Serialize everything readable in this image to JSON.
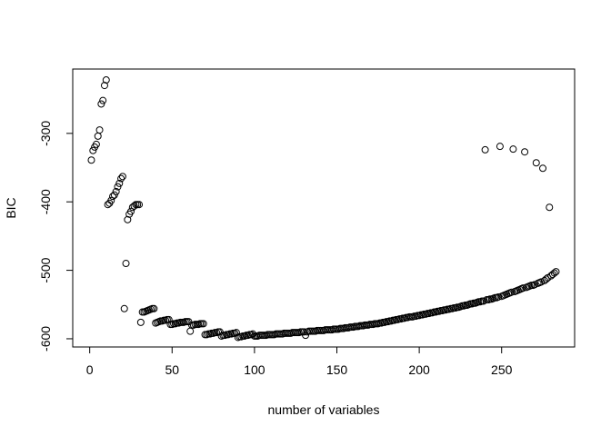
{
  "chart_data": {
    "type": "scatter",
    "x_label": "number of variables",
    "y_label": "BIC",
    "x": [
      1,
      2,
      3,
      4,
      5,
      6,
      7,
      8,
      9,
      10,
      11,
      12,
      13,
      14,
      15,
      16,
      17,
      18,
      19,
      20,
      21,
      22,
      23,
      24,
      25,
      26,
      27,
      28,
      29,
      30,
      31,
      32,
      33,
      34,
      35,
      36,
      37,
      38,
      39,
      40,
      41,
      42,
      43,
      44,
      45,
      46,
      47,
      48,
      49,
      50,
      51,
      52,
      53,
      54,
      55,
      56,
      57,
      58,
      59,
      60,
      61,
      62,
      63,
      64,
      65,
      66,
      67,
      68,
      69,
      70,
      71,
      72,
      73,
      74,
      75,
      76,
      77,
      78,
      79,
      80,
      81,
      82,
      83,
      84,
      85,
      86,
      87,
      88,
      89,
      90,
      91,
      92,
      93,
      94,
      95,
      96,
      97,
      98,
      99,
      100,
      101,
      102,
      103,
      104,
      105,
      106,
      107,
      108,
      109,
      110,
      111,
      112,
      113,
      114,
      115,
      116,
      117,
      118,
      119,
      120,
      121,
      122,
      123,
      124,
      125,
      126,
      127,
      128,
      129,
      130,
      131,
      132,
      133,
      134,
      135,
      136,
      137,
      138,
      139,
      140,
      141,
      142,
      143,
      144,
      145,
      146,
      147,
      148,
      149,
      150,
      151,
      152,
      153,
      154,
      155,
      156,
      157,
      158,
      159,
      160,
      161,
      162,
      163,
      164,
      165,
      166,
      167,
      168,
      169,
      170,
      171,
      172,
      173,
      174,
      175,
      176,
      177,
      178,
      179,
      180,
      181,
      182,
      183,
      184,
      185,
      186,
      187,
      188,
      189,
      190,
      191,
      192,
      193,
      194,
      195,
      196,
      197,
      198,
      199,
      200,
      201,
      202,
      203,
      204,
      205,
      206,
      207,
      208,
      209,
      210,
      211,
      212,
      213,
      214,
      215,
      216,
      217,
      218,
      219,
      220,
      221,
      222,
      223,
      224,
      225,
      226,
      227,
      228,
      229,
      230,
      231,
      232,
      233,
      234,
      235,
      236,
      237,
      238,
      239,
      240,
      241,
      242,
      243,
      244,
      245,
      246,
      247,
      248,
      249,
      250,
      251,
      252,
      253,
      254,
      255,
      256,
      257,
      258,
      259,
      260,
      261,
      262,
      263,
      264,
      265,
      266,
      267,
      268,
      269,
      270,
      271,
      272,
      273,
      274,
      275,
      276,
      277,
      278,
      279,
      280,
      281,
      282,
      283
    ],
    "values": [
      -339,
      -325,
      -320,
      -316,
      -304,
      -295,
      -257,
      -252,
      -230,
      -222,
      -404,
      -402,
      -398,
      -392,
      -390,
      -385,
      -378,
      -373,
      -366,
      -363,
      -556,
      -490,
      -426,
      -418,
      -414,
      -408,
      -406,
      -404,
      -404,
      -404,
      -576,
      -561,
      -561,
      -560,
      -559,
      -558,
      -557,
      -556,
      -556,
      -577,
      -576,
      -575,
      -574,
      -574,
      -573,
      -573,
      -572,
      -572,
      -579,
      -579,
      -578,
      -578,
      -577,
      -577,
      -576,
      -576,
      -576,
      -575,
      -575,
      -575,
      -589,
      -580,
      -580,
      -579,
      -579,
      -579,
      -578,
      -578,
      -578,
      -594,
      -594,
      -593,
      -593,
      -592,
      -592,
      -591,
      -591,
      -590,
      -590,
      -596,
      -595,
      -595,
      -594,
      -594,
      -593,
      -593,
      -592,
      -592,
      -591,
      -598,
      -597,
      -597,
      -596,
      -596,
      -595,
      -595,
      -594,
      -594,
      -593,
      -596,
      -596,
      -596,
      -595,
      -595,
      -595,
      -595,
      -595,
      -594,
      -594,
      -594,
      -594,
      -594,
      -593,
      -593,
      -593,
      -593,
      -593,
      -592,
      -592,
      -592,
      -592,
      -592,
      -591,
      -591,
      -591,
      -591,
      -591,
      -590,
      -590,
      -590,
      -595,
      -590,
      -589,
      -589,
      -589,
      -589,
      -589,
      -588,
      -588,
      -588,
      -588,
      -588,
      -587,
      -587,
      -587,
      -587,
      -587,
      -586,
      -586,
      -586,
      -586,
      -585,
      -585,
      -585,
      -584,
      -584,
      -584,
      -583,
      -583,
      -583,
      -582,
      -582,
      -582,
      -581,
      -581,
      -581,
      -580,
      -580,
      -580,
      -579,
      -579,
      -579,
      -578,
      -578,
      -578,
      -577,
      -577,
      -576,
      -576,
      -575,
      -575,
      -574,
      -574,
      -573,
      -573,
      -572,
      -572,
      -571,
      -571,
      -570,
      -570,
      -569,
      -569,
      -568,
      -568,
      -568,
      -567,
      -567,
      -566,
      -566,
      -565,
      -565,
      -564,
      -564,
      -563,
      -563,
      -562,
      -562,
      -561,
      -561,
      -560,
      -560,
      -559,
      -559,
      -558,
      -558,
      -557,
      -557,
      -556,
      -556,
      -555,
      -555,
      -554,
      -554,
      -553,
      -552,
      -552,
      -551,
      -551,
      -550,
      -549,
      -549,
      -548,
      -548,
      -547,
      -546,
      -546,
      -545,
      -545,
      -324,
      -543,
      -543,
      -542,
      -542,
      -541,
      -540,
      -540,
      -539,
      -319,
      -538,
      -537,
      -536,
      -535,
      -534,
      -533,
      -532,
      -323,
      -531,
      -530,
      -529,
      -528,
      -527,
      -526,
      -327,
      -525,
      -524,
      -523,
      -522,
      -522,
      -521,
      -343,
      -519,
      -518,
      -517,
      -351,
      -515,
      -513,
      -511,
      -408,
      -508,
      -506,
      -504,
      -502
    ],
    "color": "#000000",
    "xlim": [
      -10.3,
      294.3
    ],
    "ylim": [
      -612,
      -206
    ],
    "xticks": [
      0,
      50,
      100,
      150,
      200,
      250
    ],
    "yticks": [
      -600,
      -500,
      -400,
      -300
    ]
  }
}
